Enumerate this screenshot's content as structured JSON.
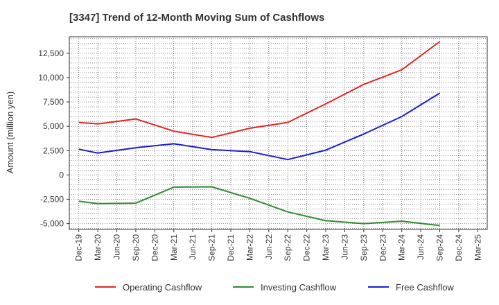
{
  "chart_data": {
    "type": "line",
    "title": "[3347]  Trend of 12-Month Moving Sum of Cashflows",
    "ylabel": "Amount (million yen)",
    "xlabel": "",
    "ylim": [
      -5600,
      14200
    ],
    "yticks": [
      -5000,
      -2500,
      0,
      2500,
      5000,
      7500,
      10000,
      12500
    ],
    "ytick_labels": [
      "-5,000",
      "-2,500",
      "0",
      "2,500",
      "5,000",
      "7,500",
      "10,000",
      "12,500"
    ],
    "categories": [
      "Dec-19",
      "Mar-20",
      "Jun-20",
      "Sep-20",
      "Dec-20",
      "Mar-21",
      "Jun-21",
      "Sep-21",
      "Dec-21",
      "Mar-22",
      "Jun-22",
      "Sep-22",
      "Dec-22",
      "Mar-23",
      "Jun-23",
      "Sep-23",
      "Dec-23",
      "Mar-24",
      "Jun-24",
      "Sep-24",
      "Dec-24",
      "Mar-25"
    ],
    "grid": true,
    "legend_position": "bottom",
    "series": [
      {
        "name": "Operating Cashflow",
        "color": "#e8231f",
        "values": [
          5400,
          5250,
          null,
          5750,
          null,
          4500,
          null,
          3850,
          null,
          4800,
          null,
          5400,
          null,
          7300,
          null,
          9300,
          null,
          10800,
          null,
          13700,
          null,
          null
        ]
      },
      {
        "name": "Investing Cashflow",
        "color": "#2e8b2e",
        "values": [
          -2700,
          -2950,
          null,
          -2900,
          null,
          -1250,
          null,
          -1220,
          null,
          -2400,
          null,
          -3800,
          null,
          -4700,
          null,
          -5000,
          null,
          -4750,
          null,
          -5200,
          null,
          null
        ]
      },
      {
        "name": "Free Cashflow",
        "color": "#1a1adc",
        "values": [
          2650,
          2250,
          null,
          2800,
          null,
          3200,
          null,
          2600,
          null,
          2400,
          null,
          1580,
          null,
          2550,
          null,
          4200,
          null,
          6000,
          null,
          8400,
          null,
          null
        ]
      }
    ]
  }
}
